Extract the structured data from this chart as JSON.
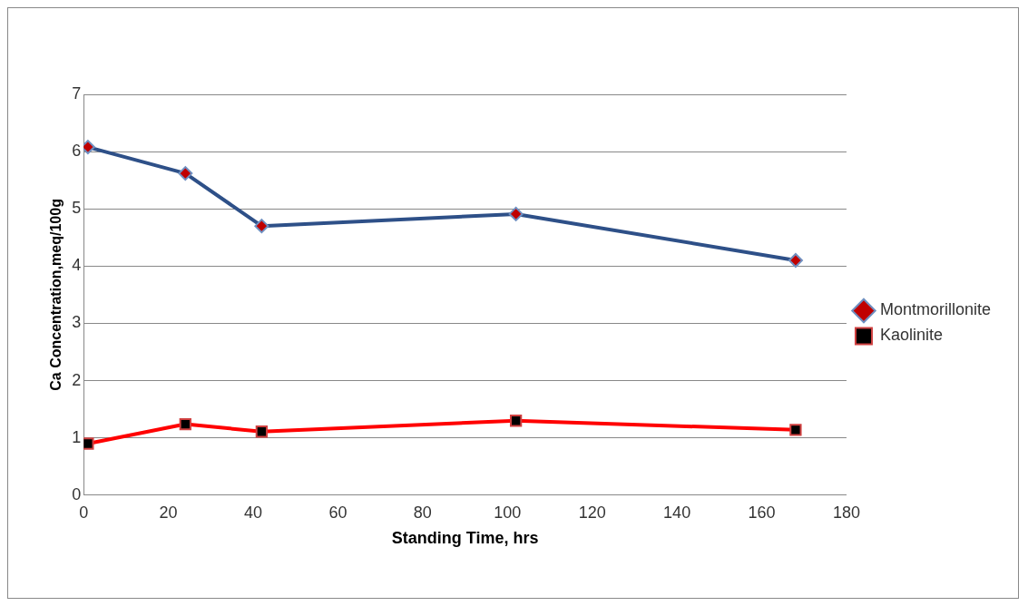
{
  "chart_data": {
    "type": "line",
    "xlabel": "Standing Time, hrs",
    "ylabel": "Ca Concentration,meq/100g",
    "x": [
      1,
      24,
      42,
      102,
      168
    ],
    "series": [
      {
        "name": "Montmorillonite",
        "color": "#2e5088",
        "colors": [
          "#c00000",
          "#c00000",
          "#c00000",
          "#c00000",
          "#c00000"
        ],
        "marker": "diamond",
        "values": [
          6.08,
          5.62,
          4.7,
          4.91,
          4.1
        ]
      },
      {
        "name": "Kaolinite",
        "color": "#ff0000",
        "colors": [
          "#000000",
          "#000000",
          "#000000",
          "#000000",
          "#000000"
        ],
        "marker": "square",
        "values": [
          0.9,
          1.24,
          1.11,
          1.3,
          1.14
        ]
      }
    ],
    "xlim": [
      0,
      180
    ],
    "xticks": [
      0,
      20,
      40,
      60,
      80,
      100,
      120,
      140,
      160,
      180
    ],
    "ylim": [
      0,
      7
    ],
    "yticks": [
      0,
      1,
      2,
      3,
      4,
      5,
      6,
      7
    ],
    "grid": "y",
    "legend": "right",
    "line_style": "solid"
  }
}
